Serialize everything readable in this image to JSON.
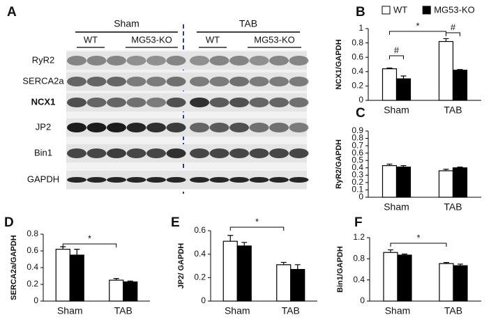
{
  "blot": {
    "panel": "A",
    "groups": [
      "Sham",
      "TAB"
    ],
    "subgroups": [
      "WT",
      "MG53-KO",
      "WT",
      "MG53-KO"
    ],
    "rows": [
      "RyR2",
      "SERCA2a",
      "NCX1",
      "JP2",
      "Bin1",
      "GAPDH"
    ]
  },
  "chart_data": [
    {
      "type": "bar",
      "panel": "B",
      "ylabel": "NCX1/GAPDH",
      "categories": [
        "Sham",
        "TAB"
      ],
      "series": [
        {
          "name": "WT",
          "color": "#ffffff",
          "values": [
            0.44,
            0.82
          ],
          "errors": [
            0.01,
            0.04
          ]
        },
        {
          "name": "MG53-KO",
          "color": "#000000",
          "values": [
            0.3,
            0.42
          ],
          "errors": [
            0.04,
            0.01
          ]
        }
      ],
      "ylim": [
        0,
        1
      ],
      "yticks": [
        0,
        0.2,
        0.4,
        0.6,
        0.8,
        1
      ],
      "annotations": [
        "*",
        "#",
        "#"
      ]
    },
    {
      "type": "bar",
      "panel": "C",
      "ylabel": "RyR2/GAPDH",
      "categories": [
        "Sham",
        "TAB"
      ],
      "series": [
        {
          "color": "#ffffff",
          "values": [
            0.43,
            0.36
          ],
          "errors": [
            0.02,
            0.02
          ]
        },
        {
          "color": "#000000",
          "values": [
            0.41,
            0.4
          ],
          "errors": [
            0.02,
            0.01
          ]
        }
      ],
      "ylim": [
        0,
        0.9
      ],
      "yticks": [
        0,
        0.1,
        0.2,
        0.3,
        0.4,
        0.5,
        0.6,
        0.7,
        0.8,
        0.9
      ],
      "annotations": []
    },
    {
      "type": "bar",
      "panel": "D",
      "ylabel": "SERCA2a/GAPDH",
      "categories": [
        "Sham",
        "TAB"
      ],
      "series": [
        {
          "color": "#ffffff",
          "values": [
            0.62,
            0.25
          ],
          "errors": [
            0.03,
            0.02
          ]
        },
        {
          "color": "#000000",
          "values": [
            0.55,
            0.23
          ],
          "errors": [
            0.07,
            0.01
          ]
        }
      ],
      "ylim": [
        0,
        0.8
      ],
      "yticks": [
        0,
        0.2,
        0.4,
        0.6,
        0.8
      ],
      "annotations": [
        "*"
      ]
    },
    {
      "type": "bar",
      "panel": "E",
      "ylabel": "JP2/ GAPDH",
      "categories": [
        "Sham",
        "TAB"
      ],
      "series": [
        {
          "color": "#ffffff",
          "values": [
            0.51,
            0.31
          ],
          "errors": [
            0.05,
            0.02
          ]
        },
        {
          "color": "#000000",
          "values": [
            0.47,
            0.27
          ],
          "errors": [
            0.03,
            0.04
          ]
        }
      ],
      "ylim": [
        0,
        0.6
      ],
      "yticks": [
        0,
        0.2,
        0.4,
        0.6
      ],
      "annotations": [
        "*"
      ]
    },
    {
      "type": "bar",
      "panel": "F",
      "ylabel": "Bin1/GAPDH",
      "categories": [
        "Sham",
        "TAB"
      ],
      "series": [
        {
          "color": "#ffffff",
          "values": [
            0.92,
            0.71
          ],
          "errors": [
            0.05,
            0.02
          ]
        },
        {
          "color": "#000000",
          "values": [
            0.87,
            0.67
          ],
          "errors": [
            0.02,
            0.03
          ]
        }
      ],
      "ylim": [
        0,
        1.2
      ],
      "yticks": [
        0,
        0.4,
        0.8,
        1.2
      ],
      "annotations": [
        "*"
      ]
    }
  ]
}
